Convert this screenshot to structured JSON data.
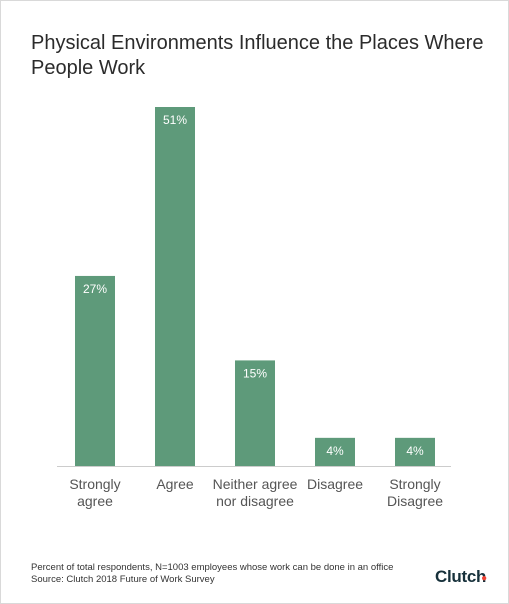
{
  "title": "Physical Environments Influence the Places Where People Work",
  "chart_data": {
    "type": "bar",
    "categories": [
      [
        "Strongly",
        "agree"
      ],
      [
        "Agree"
      ],
      [
        "Neither agree",
        "nor disagree"
      ],
      [
        "Disagree"
      ],
      [
        "Strongly",
        "Disagree"
      ]
    ],
    "values": [
      27,
      51,
      15,
      4,
      4
    ],
    "value_labels": [
      "27%",
      "51%",
      "15%",
      "4%",
      "4%"
    ],
    "ylim": [
      0,
      51
    ],
    "grid": false,
    "bar_color": "#5e9a7a",
    "label_color": "#ffffff",
    "tick_label_color": "#555555",
    "axis_color": "#cccccc"
  },
  "footnote": {
    "line1": "Percent of total respondents, N=1003 employees whose work can be done in an office",
    "line2": "Source: Clutch 2018 Future of Work Survey"
  },
  "brand": {
    "name": "Clutch",
    "accent": "#ef4335"
  }
}
